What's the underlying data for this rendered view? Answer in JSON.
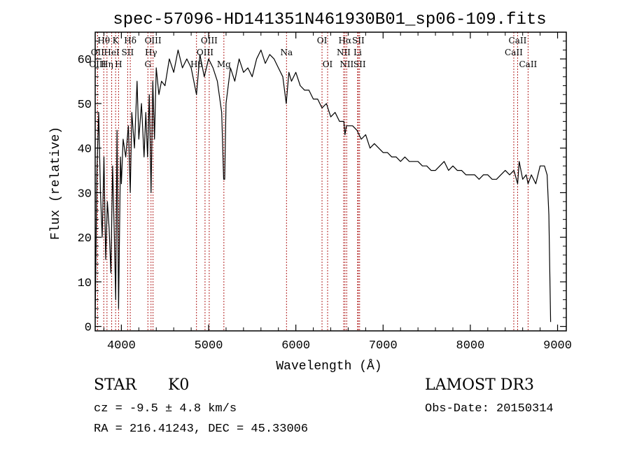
{
  "chart_data": {
    "type": "line",
    "title": "spec-57096-HD141351N461930B01_sp06-109.fits",
    "xlabel": "Wavelength (Å)",
    "ylabel": "Flux (relative)",
    "xlim": [
      3700,
      9100
    ],
    "ylim": [
      -1,
      66
    ],
    "xticks": [
      4000,
      5000,
      6000,
      7000,
      8000,
      9000
    ],
    "yticks": [
      0,
      10,
      20,
      30,
      40,
      50,
      60
    ],
    "grid": false,
    "series": [
      {
        "name": "flux",
        "x": [
          3700,
          3720,
          3740,
          3760,
          3780,
          3800,
          3820,
          3840,
          3860,
          3880,
          3900,
          3920,
          3935,
          3950,
          3968,
          3990,
          4000,
          4020,
          4050,
          4080,
          4102,
          4120,
          4150,
          4180,
          4200,
          4230,
          4260,
          4280,
          4300,
          4320,
          4340,
          4360,
          4380,
          4400,
          4430,
          4460,
          4500,
          4550,
          4600,
          4650,
          4700,
          4750,
          4800,
          4861,
          4900,
          4950,
          5000,
          5050,
          5100,
          5150,
          5172,
          5184,
          5200,
          5250,
          5300,
          5350,
          5400,
          5450,
          5500,
          5550,
          5600,
          5650,
          5700,
          5750,
          5800,
          5850,
          5890,
          5920,
          5950,
          6000,
          6050,
          6100,
          6150,
          6200,
          6250,
          6300,
          6350,
          6400,
          6450,
          6500,
          6550,
          6563,
          6580,
          6600,
          6650,
          6700,
          6750,
          6800,
          6850,
          6900,
          6950,
          7000,
          7050,
          7100,
          7150,
          7200,
          7250,
          7300,
          7350,
          7400,
          7450,
          7500,
          7550,
          7600,
          7650,
          7700,
          7750,
          7800,
          7850,
          7900,
          7950,
          8000,
          8050,
          8100,
          8150,
          8200,
          8250,
          8300,
          8350,
          8400,
          8450,
          8500,
          8542,
          8560,
          8600,
          8640,
          8662,
          8700,
          8750,
          8800,
          8850,
          8880,
          8900,
          8920
        ],
        "y": [
          2,
          35,
          48,
          30,
          20,
          38,
          15,
          28,
          22,
          12,
          36,
          20,
          6,
          44,
          4,
          38,
          32,
          42,
          38,
          45,
          30,
          48,
          40,
          55,
          42,
          50,
          38,
          48,
          38,
          52,
          30,
          55,
          42,
          58,
          52,
          55,
          54,
          60,
          57,
          62,
          58,
          60,
          58,
          52,
          61,
          56,
          60,
          58,
          55,
          48,
          33,
          33,
          50,
          58,
          55,
          60,
          57,
          58,
          56,
          60,
          62,
          59,
          61,
          60,
          58,
          56,
          50,
          57,
          55,
          57,
          54,
          53,
          53,
          51,
          51,
          49,
          50,
          47,
          48,
          46,
          46,
          43,
          45,
          45,
          45,
          44,
          42,
          43,
          40,
          41,
          40,
          39,
          39,
          38,
          38,
          37,
          38,
          37,
          37,
          37,
          36,
          36,
          35,
          35,
          36,
          37,
          35,
          36,
          35,
          35,
          34,
          34,
          34,
          33,
          34,
          34,
          33,
          33,
          34,
          35,
          34,
          35,
          32,
          37,
          33,
          34,
          32,
          34,
          32,
          36,
          36,
          34,
          25,
          1
        ]
      }
    ],
    "line_markers": [
      {
        "label": "Hθ",
        "wavelength": 3798,
        "row": 1
      },
      {
        "label": "OII",
        "wavelength": 3727,
        "row": 2
      },
      {
        "label": "OIII",
        "wavelength": 3727,
        "row": 3
      },
      {
        "label": "K",
        "wavelength": 3934,
        "row": 1
      },
      {
        "label": "HeI",
        "wavelength": 3889,
        "row": 2
      },
      {
        "label": "Hη",
        "wavelength": 3835,
        "row": 3
      },
      {
        "label": "H",
        "wavelength": 3968,
        "row": 3
      },
      {
        "label": "Hδ",
        "wavelength": 4102,
        "row": 1
      },
      {
        "label": "SII",
        "wavelength": 4072,
        "row": 2
      },
      {
        "label": "OIII",
        "wavelength": 4363,
        "row": 1
      },
      {
        "label": "Hγ",
        "wavelength": 4340,
        "row": 2
      },
      {
        "label": "G",
        "wavelength": 4304,
        "row": 3
      },
      {
        "label": "OIII",
        "wavelength": 5007,
        "row": 1
      },
      {
        "label": "OIII",
        "wavelength": 4959,
        "row": 2
      },
      {
        "label": "Hβ",
        "wavelength": 4861,
        "row": 3
      },
      {
        "label": "Mg",
        "wavelength": 5175,
        "row": 3
      },
      {
        "label": "Na",
        "wavelength": 5893,
        "row": 2
      },
      {
        "label": "OI",
        "wavelength": 6300,
        "row": 1
      },
      {
        "label": "OI",
        "wavelength": 6364,
        "row": 3
      },
      {
        "label": "Hα",
        "wavelength": 6563,
        "row": 1
      },
      {
        "label": "SII",
        "wavelength": 6716,
        "row": 1
      },
      {
        "label": "NII",
        "wavelength": 6548,
        "row": 2
      },
      {
        "label": "Li",
        "wavelength": 6708,
        "row": 2
      },
      {
        "label": "NII",
        "wavelength": 6583,
        "row": 3
      },
      {
        "label": "SII",
        "wavelength": 6731,
        "row": 3
      },
      {
        "label": "CaII",
        "wavelength": 8542,
        "row": 1
      },
      {
        "label": "CaII",
        "wavelength": 8498,
        "row": 2
      },
      {
        "label": "CaII",
        "wavelength": 8662,
        "row": 3
      }
    ]
  },
  "info": {
    "object_class": "STAR",
    "subclass": "K0",
    "survey": "LAMOST DR3",
    "cz": "cz = -9.5 ± 4.8 km/s",
    "obs_date": "Obs-Date: 20150314",
    "coords": "RA = 216.41243, DEC =  45.33006"
  },
  "colors": {
    "line": "#000000",
    "marker": "#b22222",
    "text": "#000000",
    "background": "#ffffff"
  }
}
